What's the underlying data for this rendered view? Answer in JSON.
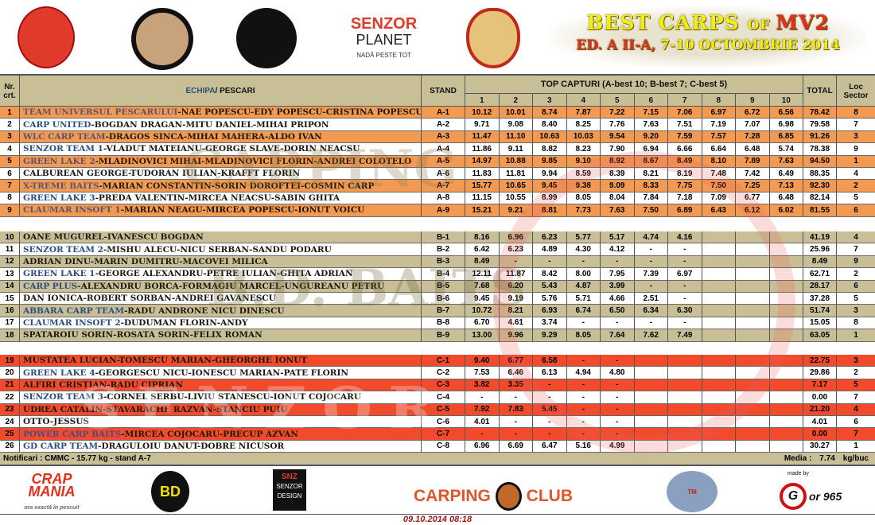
{
  "header": {
    "logos": [
      "C.S. SENZOR TEAM",
      "CARPING CLUB",
      "BD",
      "SENZOR",
      "PLANET",
      "NADĂ PESTE TOT",
      "LACUL MOARA VLASIEI 2"
    ],
    "title_line1": {
      "a": "BEST CARPS ",
      "b": "OF ",
      "c": "MV2"
    },
    "title_line2": {
      "a": "ED. A II-A, ",
      "b": "7-10 OCTOMBRIE 2014"
    }
  },
  "columns": {
    "nr": "Nr. crt.",
    "echipa": "ECHIPA",
    "pescari": " / PESCARI",
    "stand": "STAND",
    "top": "TOP CAPTURI (A-best 10; B-best 7; C-best 5)",
    "catch_cols": [
      "1",
      "2",
      "3",
      "4",
      "5",
      "6",
      "7",
      "8",
      "9",
      "10"
    ],
    "total": "TOTAL",
    "loc": "Loc Sector"
  },
  "colors": {
    "sector_a": "#f39a52",
    "sector_b": "#c9bf97",
    "sector_c": "#f14b2c",
    "team_name": "#2d4f80",
    "header": "#c9bf97"
  },
  "watermarks": [
    "CARPING",
    "B.D. BAITS",
    "SENZOR",
    "SENZOR TEAM"
  ],
  "sectors": [
    {
      "sector": "A",
      "rows": [
        {
          "nr": "1",
          "team": "TEAM UNIVERSUL PESCARULUI",
          "anglers": "-NAE POPESCU-EDY POPESCU-CRISTINA POPESCU",
          "stand": "A-1",
          "catches": [
            "10.12",
            "10.01",
            "8.74",
            "7.87",
            "7.22",
            "7.15",
            "7.06",
            "6.97",
            "6.72",
            "6.56"
          ],
          "total": "78.42",
          "loc": "8"
        },
        {
          "nr": "2",
          "team": "CARP UNITED",
          "anglers": "-BOGDAN DRAGAN-MITU DANIEL-MIHAI PRIPON",
          "stand": "A-2",
          "catches": [
            "9.71",
            "9.08",
            "8.40",
            "8.25",
            "7.76",
            "7.63",
            "7.51",
            "7.19",
            "7.07",
            "6.98"
          ],
          "total": "79.58",
          "loc": "7"
        },
        {
          "nr": "3",
          "team": "WLC CARP TEAM",
          "anglers": "-DRAGOS SINCA-MIHAI MAHERA-ALDO IVAN",
          "stand": "A-3",
          "catches": [
            "11.47",
            "11.10",
            "10.63",
            "10.03",
            "9.54",
            "9.20",
            "7.59",
            "7.57",
            "7.28",
            "6.85"
          ],
          "total": "91.26",
          "loc": "3"
        },
        {
          "nr": "4",
          "team": "SENZOR TEAM 1",
          "anglers": "-VLADUT MATEIANU-GEORGE SLAVE-DORIN NEACSU",
          "stand": "A-4",
          "catches": [
            "11.86",
            "9.11",
            "8.82",
            "8.23",
            "7.90",
            "6.94",
            "6.66",
            "6.64",
            "6.48",
            "5.74"
          ],
          "total": "78.38",
          "loc": "9"
        },
        {
          "nr": "5",
          "team": "GREEN LAKE 2",
          "anglers": "-MLADINOVICI MIHAI-MLADINOVICI FLORIN-ANDREI COLOTELO",
          "stand": "A-5",
          "catches": [
            "14.97",
            "10.88",
            "9.85",
            "9.10",
            "8.92",
            "8.67",
            "8.49",
            "8.10",
            "7.89",
            "7.63"
          ],
          "total": "94.50",
          "loc": "1"
        },
        {
          "nr": "6",
          "team": "",
          "anglers": "CALBUREAN GEORGE-TUDORAN IULIAN-KRAFFT FLORIN",
          "stand": "A-6",
          "catches": [
            "11.83",
            "11.81",
            "9.94",
            "8.59",
            "8.39",
            "8.21",
            "8.19",
            "7.48",
            "7.42",
            "6.49"
          ],
          "total": "88.35",
          "loc": "4"
        },
        {
          "nr": "7",
          "team": "X-TREME BAITS",
          "anglers": "-MARIAN CONSTANTIN-SORIN DOROFTEI-COSMIN CARP",
          "stand": "A-7",
          "catches": [
            "15.77",
            "10.65",
            "9.45",
            "9.38",
            "9.09",
            "8.33",
            "7.75",
            "7.50",
            "7.25",
            "7.13"
          ],
          "total": "92.30",
          "loc": "2"
        },
        {
          "nr": "8",
          "team": "GREEN LAKE 3",
          "anglers": "-PREDA VALENTIN-MIRCEA NEACSU-SABIN GHITA",
          "stand": "A-8",
          "catches": [
            "11.15",
            "10.55",
            "8.99",
            "8.05",
            "8.04",
            "7.84",
            "7.18",
            "7.09",
            "6.77",
            "6.48"
          ],
          "total": "82.14",
          "loc": "5"
        },
        {
          "nr": "9",
          "team": "CLAUMAR INSOFT 1",
          "anglers": "-MARIAN NEAGU-MIRCEA POPESCU-IONUT VOICU",
          "stand": "A-9",
          "catches": [
            "15.21",
            "9.21",
            "8.81",
            "7.73",
            "7.63",
            "7.50",
            "6.89",
            "6.43",
            "6.12",
            "6.02"
          ],
          "total": "81.55",
          "loc": "6"
        }
      ]
    },
    {
      "sector": "B",
      "rows": [
        {
          "nr": "10",
          "team": "",
          "anglers": "OANE MUGUREL-IVANESCU BOGDAN",
          "stand": "B-1",
          "catches": [
            "8.16",
            "6.96",
            "6.23",
            "5.77",
            "5.17",
            "4.74",
            "4.16",
            "",
            "",
            ""
          ],
          "total": "41.19",
          "loc": "4"
        },
        {
          "nr": "11",
          "team": "SENZOR TEAM 2",
          "anglers": "-MISHU ALECU-NICU SERBAN-SANDU PODARU",
          "stand": "B-2",
          "catches": [
            "6.42",
            "6.23",
            "4.89",
            "4.30",
            "4.12",
            "-",
            "-",
            "",
            "",
            ""
          ],
          "total": "25.96",
          "loc": "7"
        },
        {
          "nr": "12",
          "team": "",
          "anglers": "ADRIAN DINU-MARIN DUMITRU-MACOVEI  MILICA",
          "stand": "B-3",
          "catches": [
            "8.49",
            "-",
            "-",
            "-",
            "-",
            "-",
            "-",
            "",
            "",
            ""
          ],
          "total": "8.49",
          "loc": "9"
        },
        {
          "nr": "13",
          "team": "GREEN LAKE 1",
          "anglers": "-GEORGE ALEXANDRU-PETRE IULIAN-GHITA ADRIAN",
          "stand": "B-4",
          "catches": [
            "12.11",
            "11.87",
            "8.42",
            "8.00",
            "7.95",
            "7.39",
            "6.97",
            "",
            "",
            ""
          ],
          "total": "62.71",
          "loc": "2"
        },
        {
          "nr": "14",
          "team": "CARP PLUS",
          "anglers": "-ALEXANDRU BORCA-FORMAGIU MARCEL-UNGUREANU PETRU",
          "stand": "B-5",
          "catches": [
            "7.68",
            "6.20",
            "5.43",
            "4.87",
            "3.99",
            "-",
            "-",
            "",
            "",
            ""
          ],
          "total": "28.17",
          "loc": "6"
        },
        {
          "nr": "15",
          "team": "",
          "anglers": "DAN IONICA-ROBERT SORBAN-ANDREI GAVANESCU",
          "stand": "B-6",
          "catches": [
            "9.45",
            "9.19",
            "5.76",
            "5.71",
            "4.66",
            "2.51",
            "-",
            "",
            "",
            ""
          ],
          "total": "37.28",
          "loc": "5"
        },
        {
          "nr": "16",
          "team": "ABBARA CARP TEAM",
          "anglers": "-RADU ANDRONE NICU DINESCU",
          "stand": "B-7",
          "catches": [
            "10.72",
            "8.21",
            "6.93",
            "6.74",
            "6.50",
            "6.34",
            "6.30",
            "",
            "",
            ""
          ],
          "total": "51.74",
          "loc": "3"
        },
        {
          "nr": "17",
          "team": "CLAUMAR INSOFT 2",
          "anglers": "-DUDUMAN FLORIN-ANDY",
          "stand": "B-8",
          "catches": [
            "6.70",
            "4.61",
            "3.74",
            "-",
            "-",
            "-",
            "-",
            "",
            "",
            ""
          ],
          "total": "15.05",
          "loc": "8"
        },
        {
          "nr": "18",
          "team": "",
          "anglers": "SPATAROIU SORIN-ROSATA SORIN-FELIX ROMAN",
          "stand": "B-9",
          "catches": [
            "13.00",
            "9.96",
            "9.29",
            "8.05",
            "7.64",
            "7.62",
            "7.49",
            "",
            "",
            ""
          ],
          "total": "63.05",
          "loc": "1"
        }
      ]
    },
    {
      "sector": "C",
      "rows": [
        {
          "nr": "19",
          "team": "",
          "anglers": "MUSTATEA LUCIAN-TOMESCU MARIAN-GHEORGHE IONUT",
          "stand": "C-1",
          "catches": [
            "9.40",
            "6.77",
            "6.58",
            "-",
            "-",
            "",
            "",
            "",
            "",
            ""
          ],
          "total": "22.75",
          "loc": "3"
        },
        {
          "nr": "20",
          "team": "GREEN LAKE 4",
          "anglers": "-GEORGESCU NICU-IONESCU MARIAN-PATE FLORIN",
          "stand": "C-2",
          "catches": [
            "7.53",
            "6.46",
            "6.13",
            "4.94",
            "4.80",
            "",
            "",
            "",
            "",
            ""
          ],
          "total": "29.86",
          "loc": "2"
        },
        {
          "nr": "21",
          "team": "",
          "anglers": "ALFIRI CRISTIAN-RADU CIPRIAN",
          "stand": "C-3",
          "catches": [
            "3.82",
            "3.35",
            "-",
            "-",
            "-",
            "",
            "",
            "",
            "",
            ""
          ],
          "total": "7.17",
          "loc": "5"
        },
        {
          "nr": "22",
          "team": "SENZOR TEAM 3",
          "anglers": "-CORNEL SERBU-LIVIU STANESCU-IONUT COJOCARU",
          "stand": "C-4",
          "catches": [
            "-",
            "-",
            "-",
            "-",
            "-",
            "",
            "",
            "",
            "",
            ""
          ],
          "total": "0.00",
          "loc": "7"
        },
        {
          "nr": "23",
          "team": "",
          "anglers": "UDREA CATALIN-STAVARACHE RAZVAN-STANCIU PUIU",
          "stand": "C-5",
          "catches": [
            "7.92",
            "7.83",
            "5.45",
            "-",
            "-",
            "",
            "",
            "",
            "",
            ""
          ],
          "total": "21.20",
          "loc": "4"
        },
        {
          "nr": "24",
          "team": "",
          "anglers": "OTTO-JESSUS",
          "stand": "C-6",
          "catches": [
            "4.01",
            "-",
            "-",
            "-",
            "-",
            "",
            "",
            "",
            "",
            ""
          ],
          "total": "4.01",
          "loc": "6"
        },
        {
          "nr": "25",
          "team": "POWER CARP BAITS",
          "anglers": "-MIRCEA COJOCARU-PRECUP AZVAN",
          "stand": "C-7",
          "catches": [
            "-",
            "-",
            "-",
            "-",
            "-",
            "",
            "",
            "",
            "",
            ""
          ],
          "total": "0.00",
          "loc": "7"
        },
        {
          "nr": "26",
          "team": "GD CARP TEAM",
          "anglers": "-DRAGULOIU DANUT-DOBRE NICUSOR",
          "stand": "C-8",
          "catches": [
            "6.96",
            "6.69",
            "6.47",
            "5.16",
            "4.99",
            "",
            "",
            "",
            "",
            ""
          ],
          "total": "30.27",
          "loc": "1"
        }
      ]
    }
  ],
  "footer": {
    "notificari": "Notificari : CMMC -  15.77 kg - stand A-7",
    "media_label": "Media :",
    "media_value": "7.74",
    "media_unit": "kg/buc",
    "logos": [
      "CRAP",
      "MANIA",
      "ora exactă în pescuit",
      "BD",
      "SNZ",
      "SENZOR DESIGN",
      "CARPING",
      "CLUB",
      "TM",
      "made by",
      "G",
      "or 965"
    ],
    "timestamp": "09.10.2014 08:18"
  }
}
